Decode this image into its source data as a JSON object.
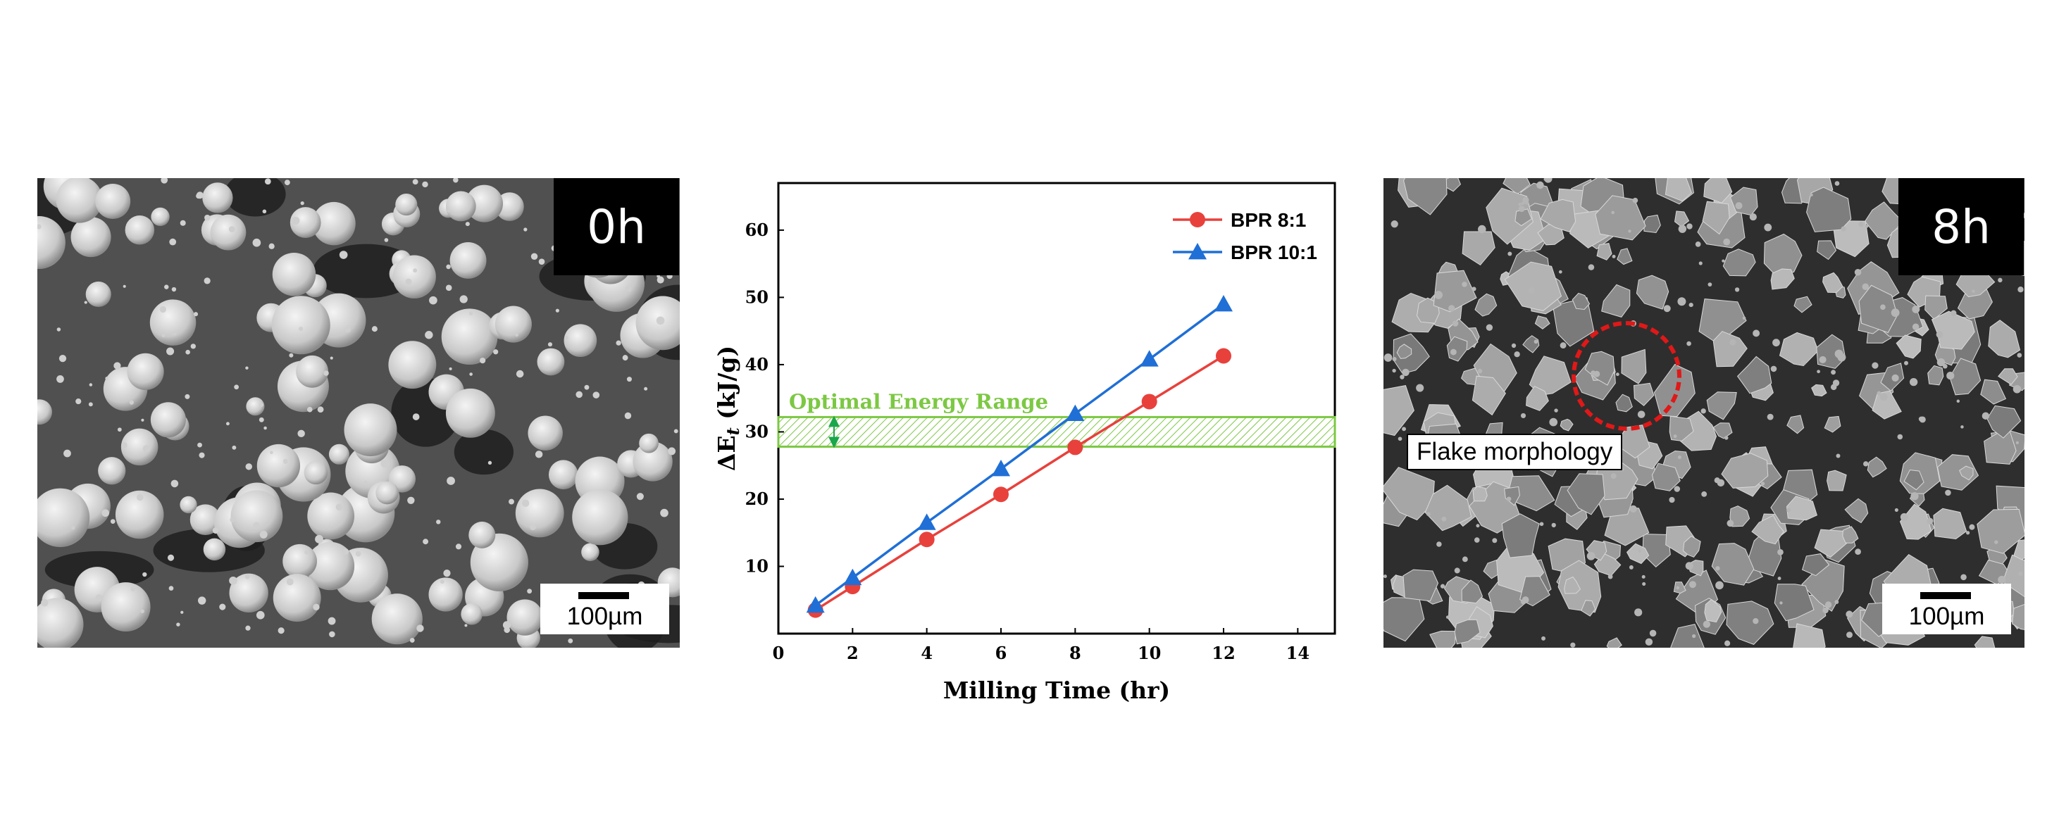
{
  "panels": {
    "left": {
      "time_label": "0h",
      "scale_label": "100µm"
    },
    "right": {
      "time_label": "8h",
      "scale_label": "100µm",
      "annotation": "Flake morphology"
    }
  },
  "colors": {
    "bpr8": "#e8413c",
    "bpr10": "#1f6fd6",
    "band": "#7cc843",
    "flake_circle": "#e01818"
  },
  "chart_data": {
    "type": "line",
    "title": "",
    "xlabel": "Milling Time (hr)",
    "ylabel_prefix": "ΔE",
    "ylabel_sub": "t",
    "ylabel_unit": " (kJ/g)",
    "xlim": [
      0,
      15
    ],
    "ylim": [
      0,
      67
    ],
    "xticks": [
      0,
      2,
      4,
      6,
      8,
      10,
      12,
      14
    ],
    "yticks": [
      10,
      20,
      30,
      40,
      50,
      60
    ],
    "legend_position": "top-right",
    "series": [
      {
        "name": "BPR 8:1",
        "marker": "circle",
        "x": [
          1,
          2,
          4,
          6,
          8,
          10,
          12
        ],
        "values": [
          3.5,
          7,
          14,
          20.7,
          27.7,
          34.5,
          41.3
        ]
      },
      {
        "name": "BPR 10:1",
        "marker": "triangle",
        "x": [
          1,
          2,
          4,
          6,
          8,
          10,
          12
        ],
        "values": [
          4.2,
          8.3,
          16.5,
          24.5,
          32.7,
          40.8,
          49
        ]
      }
    ],
    "band": {
      "label": "Optimal Energy Range",
      "ymin": 27.8,
      "ymax": 32.2
    }
  }
}
